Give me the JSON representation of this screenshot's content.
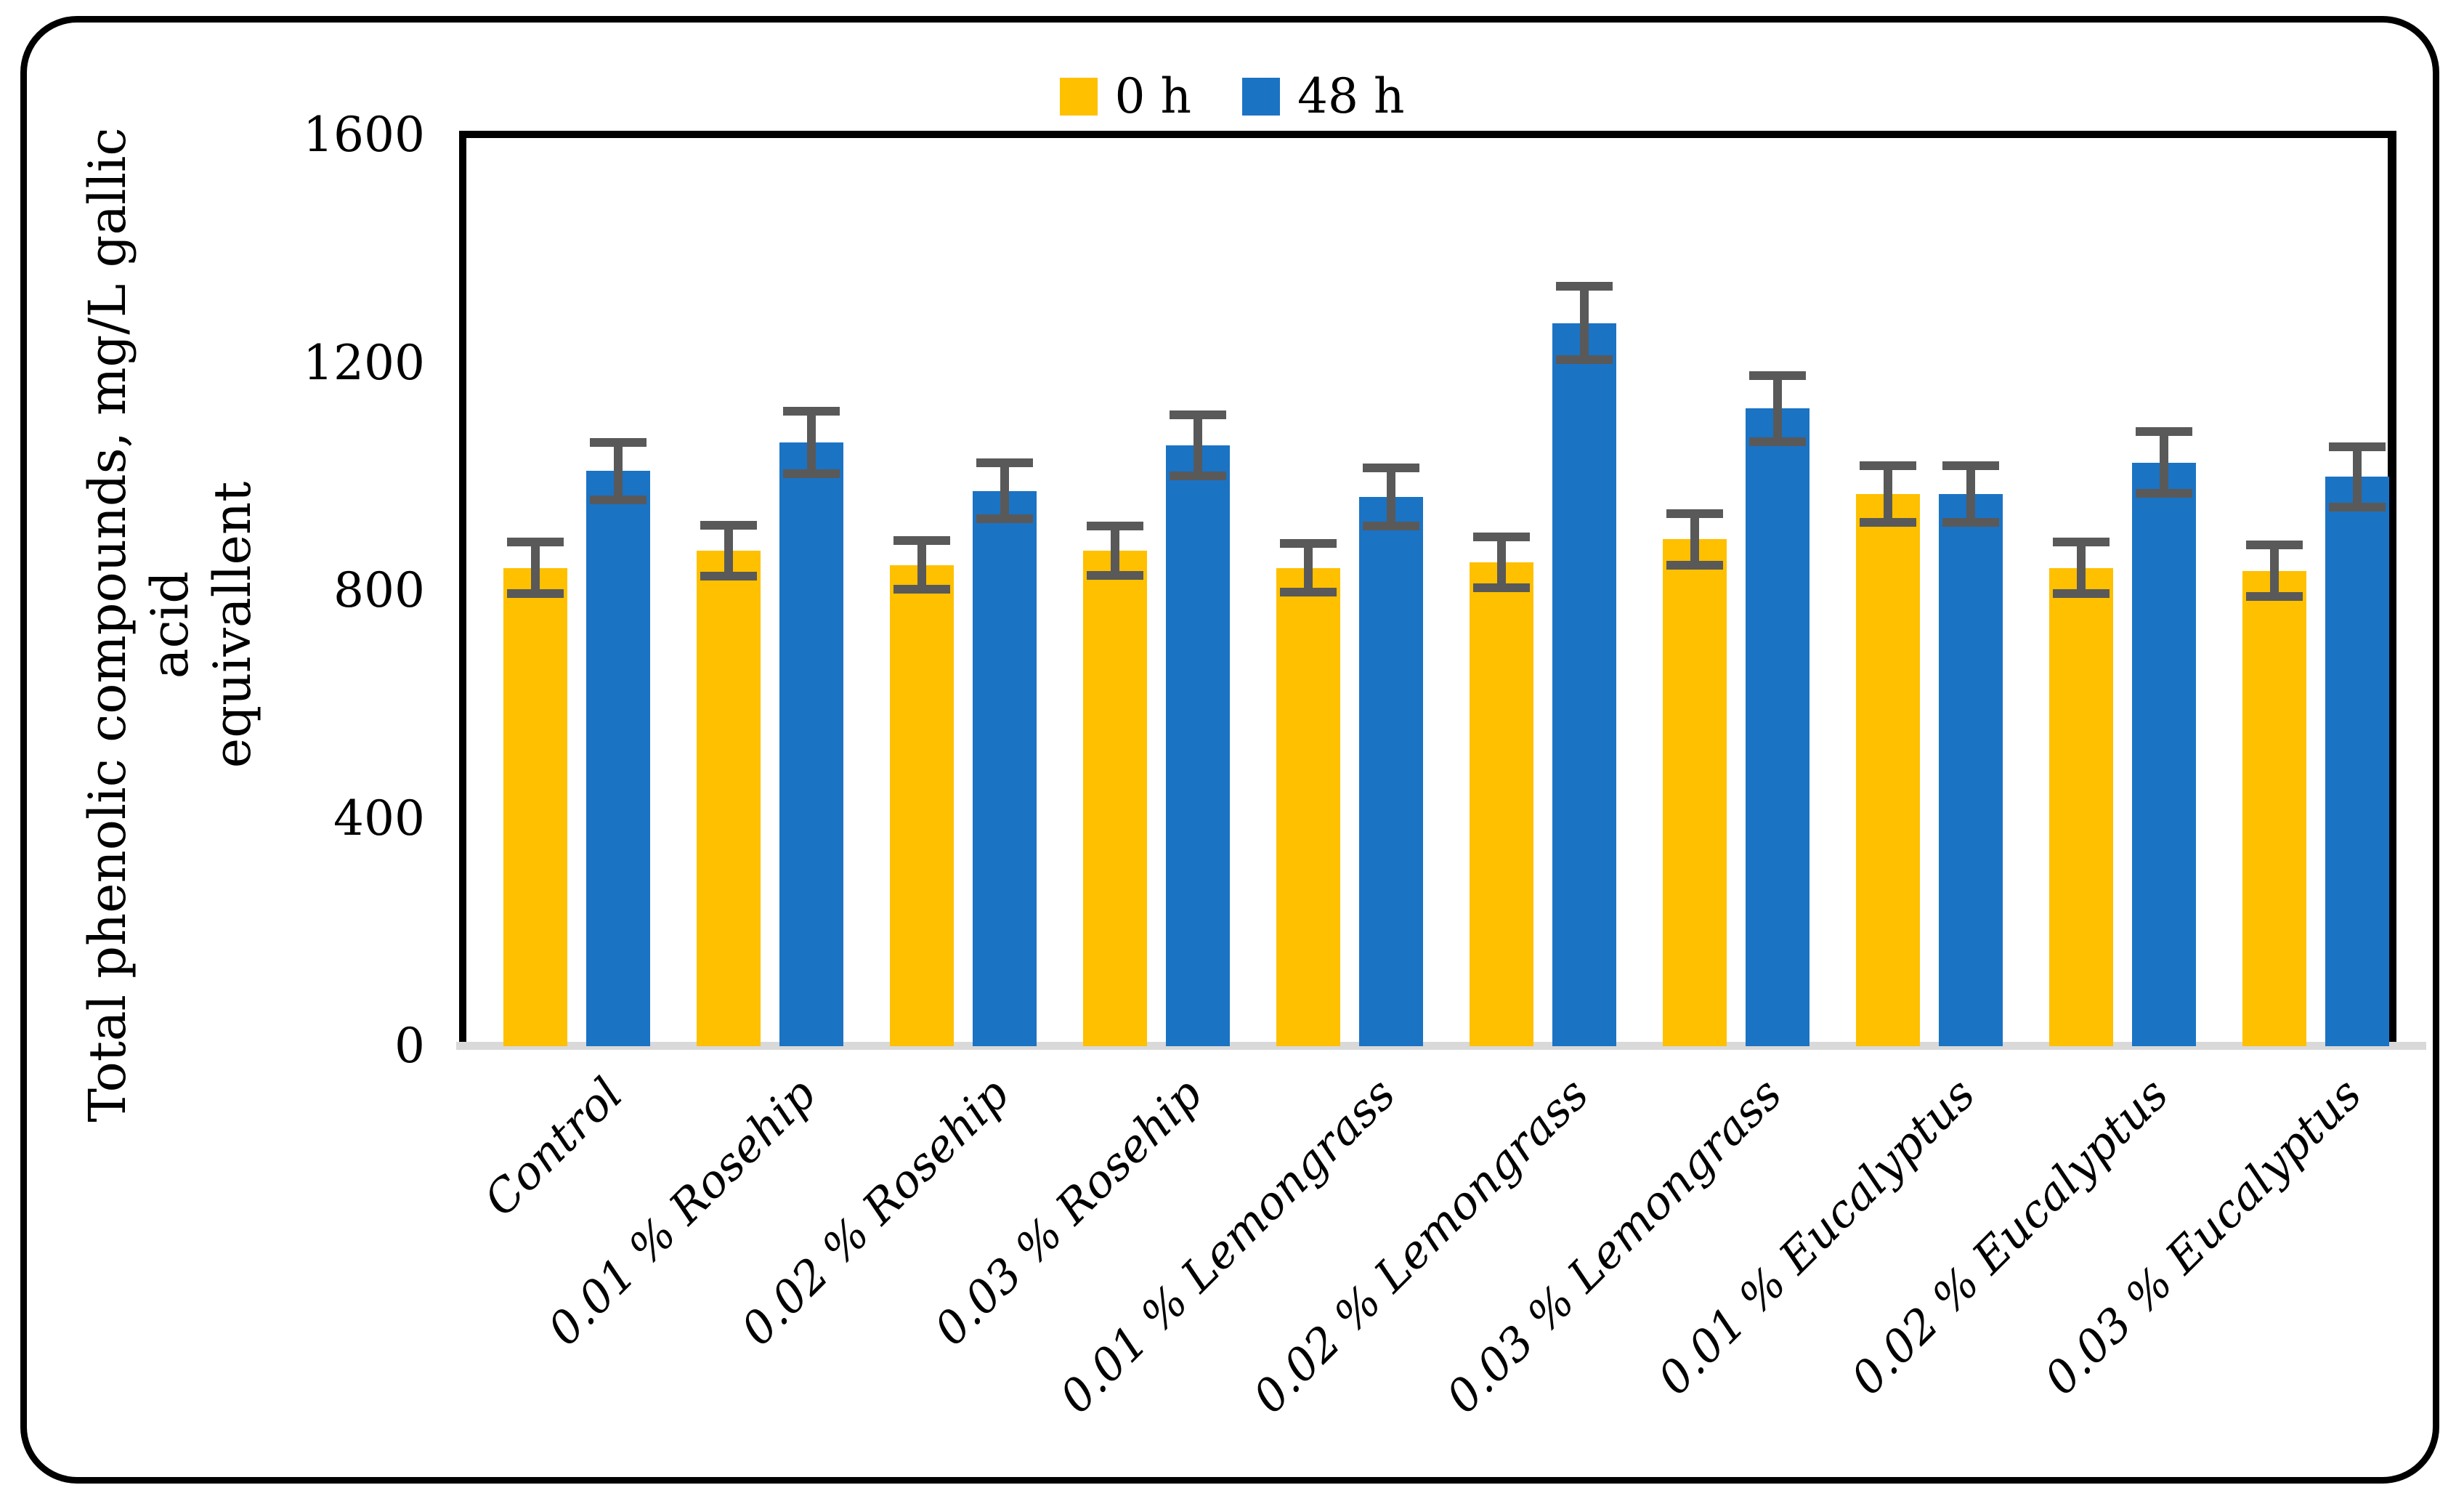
{
  "legend": {
    "items": [
      "0 h",
      "48 h"
    ]
  },
  "y_axis": {
    "title_line1": "Total phenolic compounds, mg/L gallic acid",
    "title_line2": "equivallent",
    "tick_labels": [
      "0",
      "400",
      "800",
      "1200",
      "1600"
    ]
  },
  "chart_data": {
    "type": "bar",
    "title": "",
    "categories": [
      "Control",
      "0.01 % Rosehip",
      "0.02 % Rosehip",
      "0.03 % Rosehip",
      "0.01 % Lemongrass",
      "0.02 % Lemongrass",
      "0.03 % Lemongrass",
      "0.01 % Eucalyptus",
      "0.02 % Eucalyptus",
      "0.03 % Eucalyptus"
    ],
    "series": [
      {
        "name": "0 h",
        "color": "#FFC000",
        "values": [
          840,
          870,
          845,
          870,
          840,
          850,
          890,
          970,
          840,
          835
        ],
        "errors": [
          45,
          45,
          43,
          43,
          43,
          45,
          45,
          50,
          45,
          45
        ]
      },
      {
        "name": "48 h",
        "color": "#1B73C4",
        "values": [
          1010,
          1060,
          975,
          1055,
          965,
          1270,
          1120,
          970,
          1025,
          1000
        ],
        "errors": [
          50,
          55,
          49,
          54,
          51,
          64,
          58,
          50,
          54,
          53
        ]
      }
    ],
    "ylabel": "Total phenolic compounds, mg/L gallic acid equivallent",
    "xlabel": "",
    "yticks": [
      0,
      400,
      800,
      1200,
      1600
    ],
    "ylim": [
      0,
      1600
    ],
    "legend_position": "top-center",
    "grid": false,
    "error_bar_color": "#595959",
    "colors": {
      "frame": "#000000",
      "baseline": "#D9D9D9",
      "background": "#FFFFFF"
    }
  }
}
